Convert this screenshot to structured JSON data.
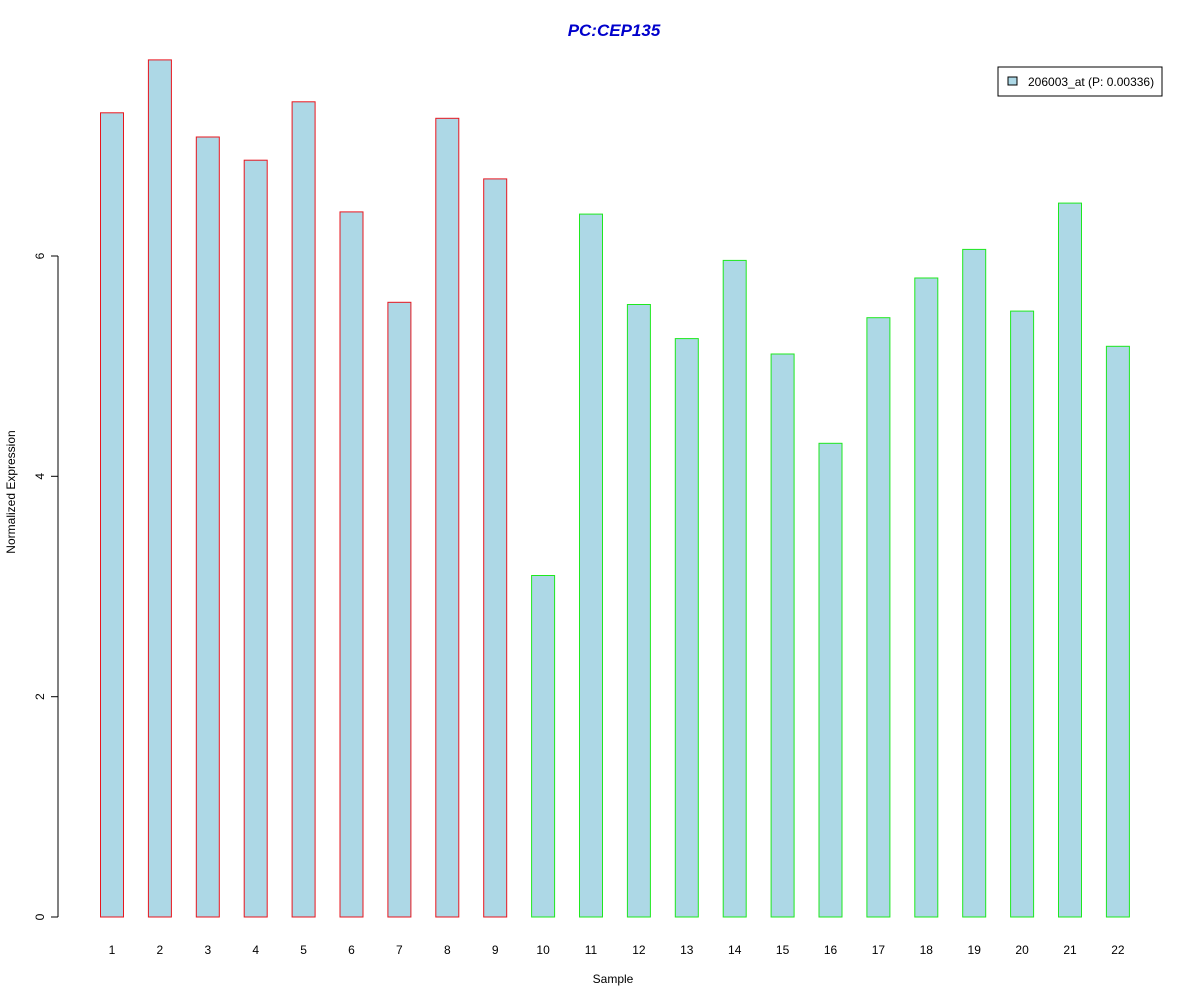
{
  "chart_data": {
    "type": "bar",
    "title": "PC:CEP135",
    "xlabel": "Sample",
    "ylabel": "Normalized Expression",
    "categories": [
      "1",
      "2",
      "3",
      "4",
      "5",
      "6",
      "7",
      "8",
      "9",
      "10",
      "11",
      "12",
      "13",
      "14",
      "15",
      "16",
      "17",
      "18",
      "19",
      "20",
      "21",
      "22"
    ],
    "series": [
      {
        "name": "206003_at (P: 0.00336)",
        "values": [
          7.3,
          7.78,
          7.08,
          6.87,
          7.4,
          6.4,
          5.58,
          7.25,
          6.7,
          3.1,
          6.38,
          5.56,
          5.25,
          5.96,
          5.11,
          4.3,
          5.44,
          5.8,
          6.06,
          5.5,
          6.48,
          5.18
        ]
      }
    ],
    "groups": [
      {
        "samples": [
          1,
          2,
          3,
          4,
          5,
          6,
          7,
          8,
          9
        ],
        "border_color": "#e8161e"
      },
      {
        "samples": [
          10,
          11,
          12,
          13,
          14,
          15,
          16,
          17,
          18,
          19,
          20,
          21,
          22
        ],
        "border_color": "#1ee81e"
      }
    ],
    "yticks": [
      0,
      2,
      4,
      6
    ],
    "ylim": [
      0,
      7.78
    ],
    "grid": false,
    "legend_position": "top-right",
    "colors": {
      "bar_fill": "#add8e6",
      "title": "#0000cc",
      "axis": "#000000"
    }
  }
}
